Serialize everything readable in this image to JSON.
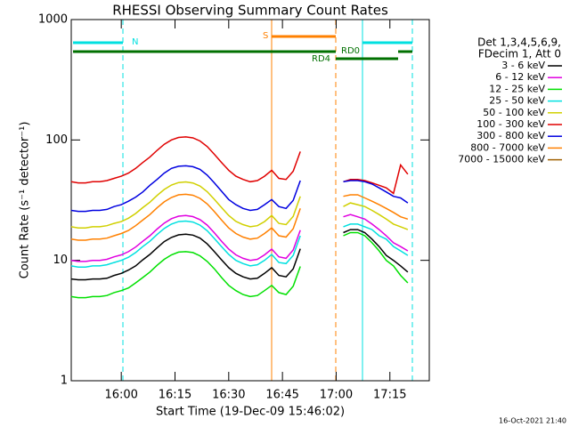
{
  "chart_data": {
    "type": "line",
    "title": "RHESSI Observing Summary Count Rates",
    "x_label": "Start Time (19-Dec-09 15:46:02)",
    "y_label": "Count Rate (s⁻¹ detector⁻¹)",
    "legend_header": [
      "Det 1,3,4,5,6,9,",
      "FDecim 1, Att 0"
    ],
    "footer": "16-Oct-2021 21:40",
    "annotations": [
      "N",
      "S",
      "RD0",
      "RD4"
    ],
    "log_y": true,
    "xlim": [
      946.03,
      1046
    ],
    "ylim": [
      1,
      1000
    ],
    "yticks": [
      1,
      10,
      100,
      1000
    ],
    "xticks": [
      {
        "value": 960,
        "label": "16:00"
      },
      {
        "value": 975,
        "label": "16:15"
      },
      {
        "value": 990,
        "label": "16:30"
      },
      {
        "value": 1005,
        "label": "16:45"
      },
      {
        "value": 1020,
        "label": "17:00"
      },
      {
        "value": 1035,
        "label": "17:15"
      }
    ],
    "x": [
      946,
      948,
      950,
      952,
      954,
      956,
      958,
      960,
      962,
      964,
      966,
      968,
      970,
      972,
      974,
      976,
      978,
      980,
      982,
      984,
      986,
      988,
      990,
      992,
      994,
      996,
      998,
      1000,
      1002,
      1004,
      1006,
      1008,
      1010,
      1016,
      1022,
      1024,
      1026,
      1028,
      1030,
      1032,
      1034,
      1036,
      1038,
      1040
    ],
    "series": [
      {
        "name": "3 - 6 keV",
        "color": "#000000",
        "values": [
          7,
          6.9,
          6.9,
          7,
          7,
          7.1,
          7.5,
          7.8,
          8.3,
          9,
          10.1,
          11.2,
          12.7,
          14.3,
          15.5,
          16.3,
          16.5,
          16.2,
          15.3,
          13.7,
          11.8,
          10.1,
          8.7,
          7.8,
          7.3,
          7,
          7.1,
          7.8,
          8.7,
          7.5,
          7.3,
          8.5,
          12.5,
          null,
          17,
          18,
          18,
          17,
          15,
          13,
          11,
          10,
          9,
          8
        ]
      },
      {
        "name": "6 - 12 keV",
        "color": "#e000e0",
        "values": [
          10,
          9.8,
          9.8,
          10,
          10,
          10.2,
          10.7,
          11.1,
          11.8,
          12.9,
          14.4,
          16,
          18.2,
          20.4,
          22.2,
          23.3,
          23.6,
          23.1,
          21.8,
          19.6,
          16.9,
          14.4,
          12.4,
          11.1,
          10.4,
          10,
          10.2,
          11.1,
          12.4,
          10.7,
          10.4,
          12.2,
          17.8,
          null,
          23,
          24,
          23,
          22,
          20,
          18,
          16,
          14,
          13,
          12
        ]
      },
      {
        "name": "12 - 25 keV",
        "color": "#00e000",
        "values": [
          5,
          4.9,
          4.9,
          5,
          5,
          5.1,
          5.4,
          5.6,
          5.9,
          6.5,
          7.2,
          8,
          9.1,
          10.2,
          11.1,
          11.7,
          11.8,
          11.6,
          10.9,
          9.8,
          8.5,
          7.2,
          6.2,
          5.6,
          5.2,
          5,
          5.1,
          5.6,
          6.2,
          5.4,
          5.2,
          6.1,
          8.9,
          null,
          16,
          17,
          17,
          16,
          14,
          12,
          10,
          9,
          7.5,
          6.5
        ]
      },
      {
        "name": "25 - 50 keV",
        "color": "#00e0e0",
        "values": [
          9,
          8.8,
          8.8,
          9,
          9,
          9.2,
          9.6,
          10,
          10.6,
          11.6,
          13,
          14.4,
          16.4,
          18.4,
          20,
          21,
          21.2,
          20.8,
          19.6,
          17.6,
          15.2,
          13,
          11.2,
          10,
          9.4,
          9,
          9.2,
          10,
          11.2,
          9.6,
          9.4,
          11,
          16,
          null,
          19,
          20,
          20,
          19,
          18,
          16,
          15,
          13,
          12,
          11
        ]
      },
      {
        "name": "50 - 100 keV",
        "color": "#d0d000",
        "values": [
          19,
          18.6,
          18.6,
          19,
          19,
          19.4,
          20.3,
          21,
          22.4,
          24.5,
          27.4,
          30.4,
          34.6,
          38.8,
          42.2,
          44.3,
          44.8,
          43.9,
          41.4,
          37.2,
          32.1,
          27.4,
          23.6,
          21.1,
          19.8,
          19,
          19.4,
          21,
          23.6,
          20.3,
          19.8,
          23.2,
          34,
          null,
          28,
          30,
          29,
          28,
          26,
          24,
          22,
          20,
          19,
          18
        ]
      },
      {
        "name": "100 - 300 keV",
        "color": "#e00000",
        "values": [
          45,
          44,
          44,
          45,
          45,
          46,
          48,
          50,
          53,
          58,
          65,
          72,
          82,
          92,
          100,
          105,
          106,
          104,
          98,
          88,
          76,
          65,
          56,
          50,
          47,
          45,
          46,
          50,
          56,
          48,
          47,
          55,
          80,
          null,
          45,
          47,
          47,
          46,
          44,
          42,
          40,
          36,
          62,
          52
        ]
      },
      {
        "name": "300 - 800 keV",
        "color": "#0000e0",
        "values": [
          26,
          25.5,
          25.5,
          26,
          26,
          26.5,
          28,
          29,
          31,
          33.5,
          37,
          42,
          47,
          53,
          58,
          60.5,
          61,
          60,
          57,
          51,
          44,
          37.5,
          32,
          29,
          27,
          26,
          26.5,
          29,
          32,
          28,
          27,
          31.5,
          46,
          null,
          45,
          46,
          46,
          45,
          43,
          40,
          37,
          34,
          33,
          30
        ]
      },
      {
        "name": "800 - 7000 keV",
        "color": "#ff8000",
        "values": [
          15,
          14.7,
          14.7,
          15,
          15,
          15.3,
          16,
          16.7,
          17.7,
          19.4,
          21.6,
          24,
          27.3,
          30.6,
          33.3,
          35,
          35.4,
          34.7,
          32.7,
          29.4,
          25.4,
          21.6,
          18.6,
          16.7,
          15.6,
          15,
          15.3,
          16.7,
          18.6,
          16,
          15.6,
          18.3,
          27,
          null,
          34,
          35,
          35,
          33,
          31,
          29,
          27,
          25,
          23,
          22
        ]
      },
      {
        "name": "7000 - 15000 keV",
        "color": "#a06000",
        "values": [
          null,
          null,
          null,
          null,
          null,
          null,
          null,
          null,
          null,
          null,
          null,
          null,
          null,
          null,
          null,
          null,
          null,
          null,
          null,
          null,
          null,
          null,
          null,
          null,
          null,
          null,
          null,
          null,
          null,
          null,
          null,
          null,
          null,
          null,
          null,
          null,
          null,
          null,
          null,
          null,
          null,
          null,
          null,
          null
        ]
      }
    ]
  }
}
